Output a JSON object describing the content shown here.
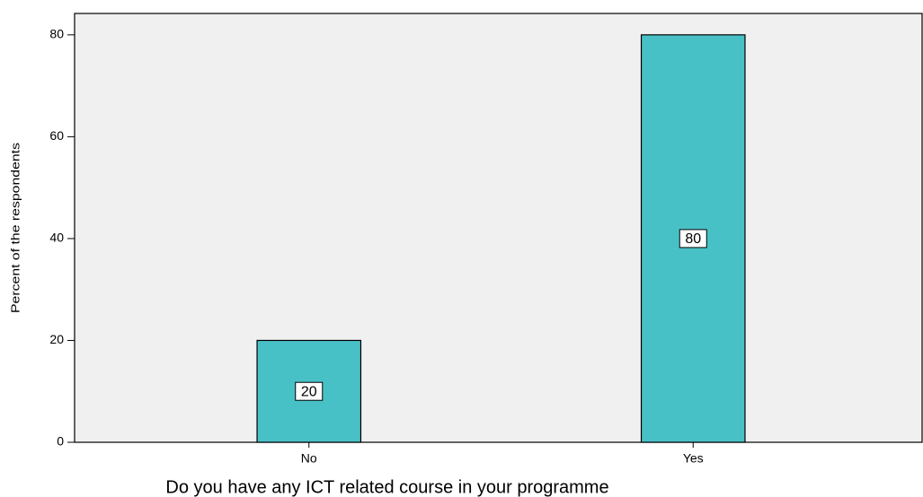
{
  "chart_data": {
    "type": "bar",
    "x_label": "Do you have any ICT related course in your programme",
    "y_label": "Percent of  the respondents",
    "categories": [
      "No",
      "Yes"
    ],
    "values": [
      20,
      80
    ],
    "color": "#48c1c6",
    "ylim": [
      0,
      84.2
    ],
    "yticks": [
      0,
      20,
      40,
      60,
      80
    ],
    "grid": false
  }
}
